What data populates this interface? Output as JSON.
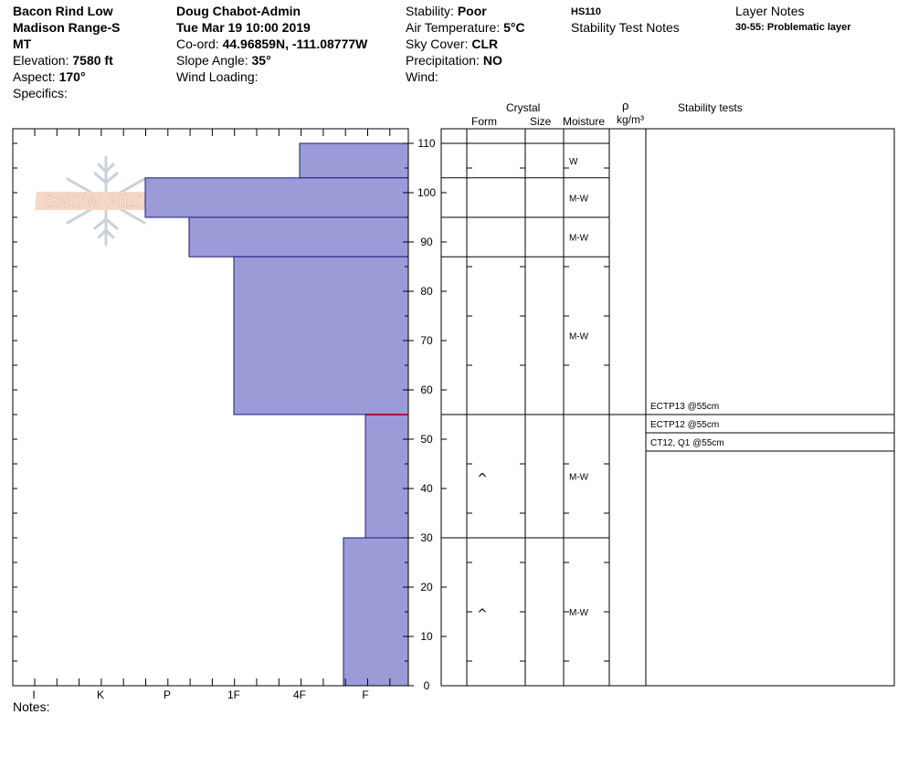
{
  "header": {
    "location_line1": "Bacon Rind Low",
    "location_line2": "Madison Range-S",
    "state": "MT",
    "elevation_label": "Elevation:",
    "elevation_value": "7580 ft",
    "aspect_label": "Aspect:",
    "aspect_value": "170°",
    "specifics_label": "Specifics:",
    "observer": "Doug Chabot-Admin",
    "datetime": "Tue Mar 19 10:00 2019",
    "coord_label": "Co-ord:",
    "coord_value": "44.96859N, -111.08777W",
    "slope_label": "Slope Angle:",
    "slope_value": "35°",
    "wind_loading_label": "Wind Loading:",
    "stability_label": "Stability:",
    "stability_value": "Poor",
    "air_temp_label": "Air Temperature:",
    "air_temp_value": "5°C",
    "sky_label": "Sky Cover:",
    "sky_value": "CLR",
    "precip_label": "Precipitation:",
    "precip_value": "NO",
    "wind_label": "Wind:",
    "hs": "HS110",
    "stability_test_notes": "Stability Test Notes",
    "layer_notes_title": "Layer Notes",
    "layer_note": "30-55: Problematic layer"
  },
  "columns": {
    "crystal": "Crystal",
    "form": "Form",
    "size": "Size",
    "moisture": "Moisture",
    "rho": "ρ",
    "density_unit": "kg/m³",
    "stability_tests": "Stability tests"
  },
  "notes_label": "Notes:",
  "logo_text": "SNOW PILOT",
  "chart_data": {
    "type": "bar",
    "orientation": "horizontal",
    "y_axis": {
      "label": "",
      "range": [
        0,
        110
      ],
      "ticks": [
        0,
        10,
        20,
        30,
        40,
        50,
        60,
        70,
        80,
        90,
        100,
        110
      ]
    },
    "x_axis": {
      "label": "",
      "categories": [
        "I",
        "K",
        "P",
        "1F",
        "4F",
        "F"
      ],
      "direction": "reversed"
    },
    "layers": [
      {
        "top": 110,
        "bottom": 103,
        "hardness": "4F",
        "moisture": "W",
        "form": ""
      },
      {
        "top": 103,
        "bottom": 95,
        "hardness": "P+",
        "moisture": "M-W",
        "form": ""
      },
      {
        "top": 95,
        "bottom": 87,
        "hardness": "P-",
        "moisture": "M-W",
        "form": ""
      },
      {
        "top": 87,
        "bottom": 55,
        "hardness": "1F",
        "moisture": "M-W",
        "form": ""
      },
      {
        "top": 55,
        "bottom": 30,
        "hardness": "F",
        "moisture": "M-W",
        "form": "^"
      },
      {
        "top": 30,
        "bottom": 0,
        "hardness": "F+",
        "moisture": "M-W",
        "form": "^"
      }
    ],
    "stability_tests": [
      "ECTP13 @55cm",
      "ECTP12 @55cm",
      "CT12, Q1 @55cm"
    ],
    "test_depth": 55,
    "bar_color": "#9b9bd8",
    "marker_color": "#b0003a"
  }
}
